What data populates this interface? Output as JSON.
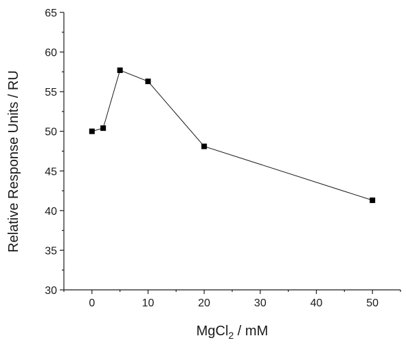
{
  "chart_data": {
    "type": "line",
    "xlabel": {
      "main": "MgCl",
      "sub": "2",
      "rest": " / mM"
    },
    "ylabel": "Relative Response Units / RU",
    "xlim": [
      -5,
      55
    ],
    "ylim": [
      30,
      65
    ],
    "xticks": [
      0,
      10,
      20,
      30,
      40,
      50
    ],
    "yticks": [
      30,
      35,
      40,
      45,
      50,
      55,
      60,
      65
    ],
    "x_minor_step": 5,
    "y_minor_step": 2.5,
    "series": [
      {
        "marker": "square",
        "color": "#000000",
        "points": [
          {
            "x": 0,
            "y": 50.0
          },
          {
            "x": 2,
            "y": 50.4
          },
          {
            "x": 5,
            "y": 57.7
          },
          {
            "x": 10,
            "y": 56.3
          },
          {
            "x": 20,
            "y": 48.1
          },
          {
            "x": 50,
            "y": 41.3
          }
        ]
      }
    ]
  }
}
